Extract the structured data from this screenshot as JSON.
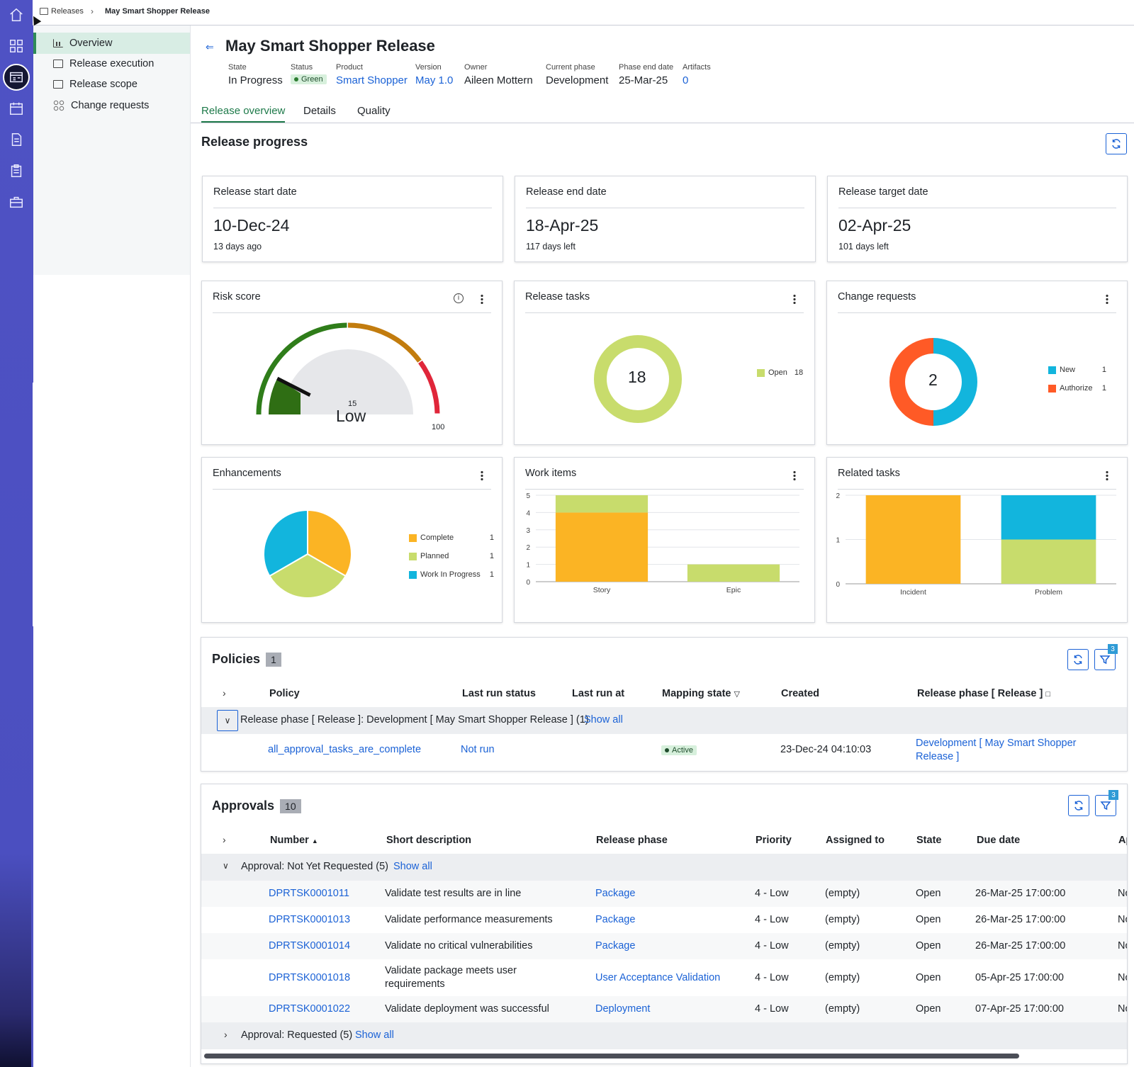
{
  "breadcrumb": {
    "root": "Releases",
    "current": "May Smart Shopper Release"
  },
  "subnav": [
    {
      "label": "Overview",
      "icon": "chart-icon",
      "active": true
    },
    {
      "label": "Release execution",
      "icon": "table-icon"
    },
    {
      "label": "Release scope",
      "icon": "list-icon"
    },
    {
      "label": "Change requests",
      "icon": "grid-icon"
    }
  ],
  "header": {
    "title": "May Smart Shopper Release",
    "fields": [
      {
        "label": "State",
        "value": "In Progress"
      },
      {
        "label": "Status",
        "value": "Green"
      },
      {
        "label": "Product",
        "value": "Smart Shopper"
      },
      {
        "label": "Version",
        "value": "May 1.0"
      },
      {
        "label": "Owner",
        "value": "Aileen Mottern"
      },
      {
        "label": "Current phase",
        "value": "Development"
      },
      {
        "label": "Phase end date",
        "value": "25-Mar-25"
      },
      {
        "label": "Artifacts",
        "value": "0"
      }
    ]
  },
  "tabs": [
    "Release overview",
    "Details",
    "Quality"
  ],
  "progress": {
    "title": "Release progress",
    "dates": [
      {
        "label": "Release start date",
        "value": "10-Dec-24",
        "sub": "13 days ago"
      },
      {
        "label": "Release end date",
        "value": "18-Apr-25",
        "sub": "117 days left"
      },
      {
        "label": "Release target date",
        "value": "02-Apr-25",
        "sub": "101 days left"
      }
    ]
  },
  "widgets": {
    "risk": {
      "title": "Risk score",
      "value": "15",
      "label": "Low",
      "max": "100"
    },
    "release_tasks": {
      "title": "Release tasks",
      "center": "18"
    },
    "change_requests": {
      "title": "Change requests",
      "center": "2"
    },
    "enhancements": {
      "title": "Enhancements"
    },
    "work_items": {
      "title": "Work items"
    },
    "related_tasks": {
      "title": "Related tasks"
    }
  },
  "chart_data": [
    {
      "type": "gauge",
      "title": "Risk score",
      "value": 15,
      "range": [
        0,
        100
      ],
      "label": "Low",
      "bands": [
        {
          "to": 50,
          "color": "#2f7d1a"
        },
        {
          "to": 80,
          "color": "#c27c0e"
        },
        {
          "to": 100,
          "color": "#e0263a"
        }
      ]
    },
    {
      "type": "pie",
      "title": "Release tasks",
      "donut": true,
      "categories": [
        "Open"
      ],
      "values": [
        18
      ],
      "colors": [
        "#c8dc6c"
      ]
    },
    {
      "type": "pie",
      "title": "Change requests",
      "donut": true,
      "categories": [
        "New",
        "Authorize"
      ],
      "values": [
        1,
        1
      ],
      "colors": [
        "#12b5dd",
        "#ff5a26"
      ]
    },
    {
      "type": "pie",
      "title": "Enhancements",
      "categories": [
        "Complete",
        "Planned",
        "Work In Progress"
      ],
      "values": [
        1,
        1,
        1
      ],
      "colors": [
        "#fbb424",
        "#c8dc6c",
        "#12b5dd"
      ]
    },
    {
      "type": "bar",
      "title": "Work items",
      "stacked": true,
      "categories": [
        "Story",
        "Epic"
      ],
      "ylim": [
        0,
        5
      ],
      "yticks": [
        0,
        1,
        2,
        3,
        4,
        5
      ],
      "series": [
        {
          "values": [
            4,
            0
          ],
          "color": "#fbb424"
        },
        {
          "values": [
            1,
            1
          ],
          "color": "#c8dc6c"
        }
      ]
    },
    {
      "type": "bar",
      "title": "Related tasks",
      "stacked": true,
      "categories": [
        "Incident",
        "Problem"
      ],
      "ylim": [
        0,
        2
      ],
      "yticks": [
        0,
        1,
        2
      ],
      "series": [
        {
          "values": [
            2,
            0
          ],
          "color": "#fbb424"
        },
        {
          "values": [
            0,
            1
          ],
          "color": "#c8dc6c"
        },
        {
          "values": [
            0,
            1
          ],
          "color": "#12b5dd"
        }
      ]
    }
  ],
  "policies": {
    "title": "Policies",
    "count": "1",
    "filter_count": "3",
    "columns": [
      "Policy",
      "Last run status",
      "Last run at",
      "Mapping state",
      "Created",
      "Release phase [ Release ]"
    ],
    "group": "Release phase [ Release ]: Development [ May Smart Shopper Release ] (1)",
    "show_all": "Show all",
    "row": {
      "policy": "all_approval_tasks_are_complete",
      "status": "Not run",
      "mapping": "Active",
      "created": "23-Dec-24 04:10:03",
      "phase_1": "Development [ May Smart Shopper",
      "phase_2": "Release ]"
    }
  },
  "approvals": {
    "title": "Approvals",
    "count": "10",
    "filter_count": "3",
    "columns": [
      "Number",
      "Short description",
      "Release phase",
      "Priority",
      "Assigned to",
      "State",
      "Due date",
      "Ap"
    ],
    "group1": "Approval: Not Yet Requested (5)",
    "group2": "Approval: Requested (5)",
    "show_all": "Show all",
    "rows": [
      {
        "number": "DPRTSK0001011",
        "desc": "Validate test results are in line",
        "phase": "Package",
        "priority": "4 - Low",
        "assigned": "(empty)",
        "state": "Open",
        "due": "26-Mar-25 17:00:00",
        "ap": "No"
      },
      {
        "number": "DPRTSK0001013",
        "desc": "Validate performance measurements",
        "phase": "Package",
        "priority": "4 - Low",
        "assigned": "(empty)",
        "state": "Open",
        "due": "26-Mar-25 17:00:00",
        "ap": "No"
      },
      {
        "number": "DPRTSK0001014",
        "desc": "Validate no critical vulnerabilities",
        "phase": "Package",
        "priority": "4 - Low",
        "assigned": "(empty)",
        "state": "Open",
        "due": "26-Mar-25 17:00:00",
        "ap": "No"
      },
      {
        "number": "DPRTSK0001018",
        "desc": "Validate package meets user",
        "desc2": "requirements",
        "phase": "User Acceptance Validation",
        "priority": "4 - Low",
        "assigned": "(empty)",
        "state": "Open",
        "due": "05-Apr-25 17:00:00",
        "ap": "No"
      },
      {
        "number": "DPRTSK0001022",
        "desc": "Validate deployment was successful",
        "phase": "Deployment",
        "priority": "4 - Low",
        "assigned": "(empty)",
        "state": "Open",
        "due": "07-Apr-25 17:00:00",
        "ap": "No"
      }
    ]
  }
}
